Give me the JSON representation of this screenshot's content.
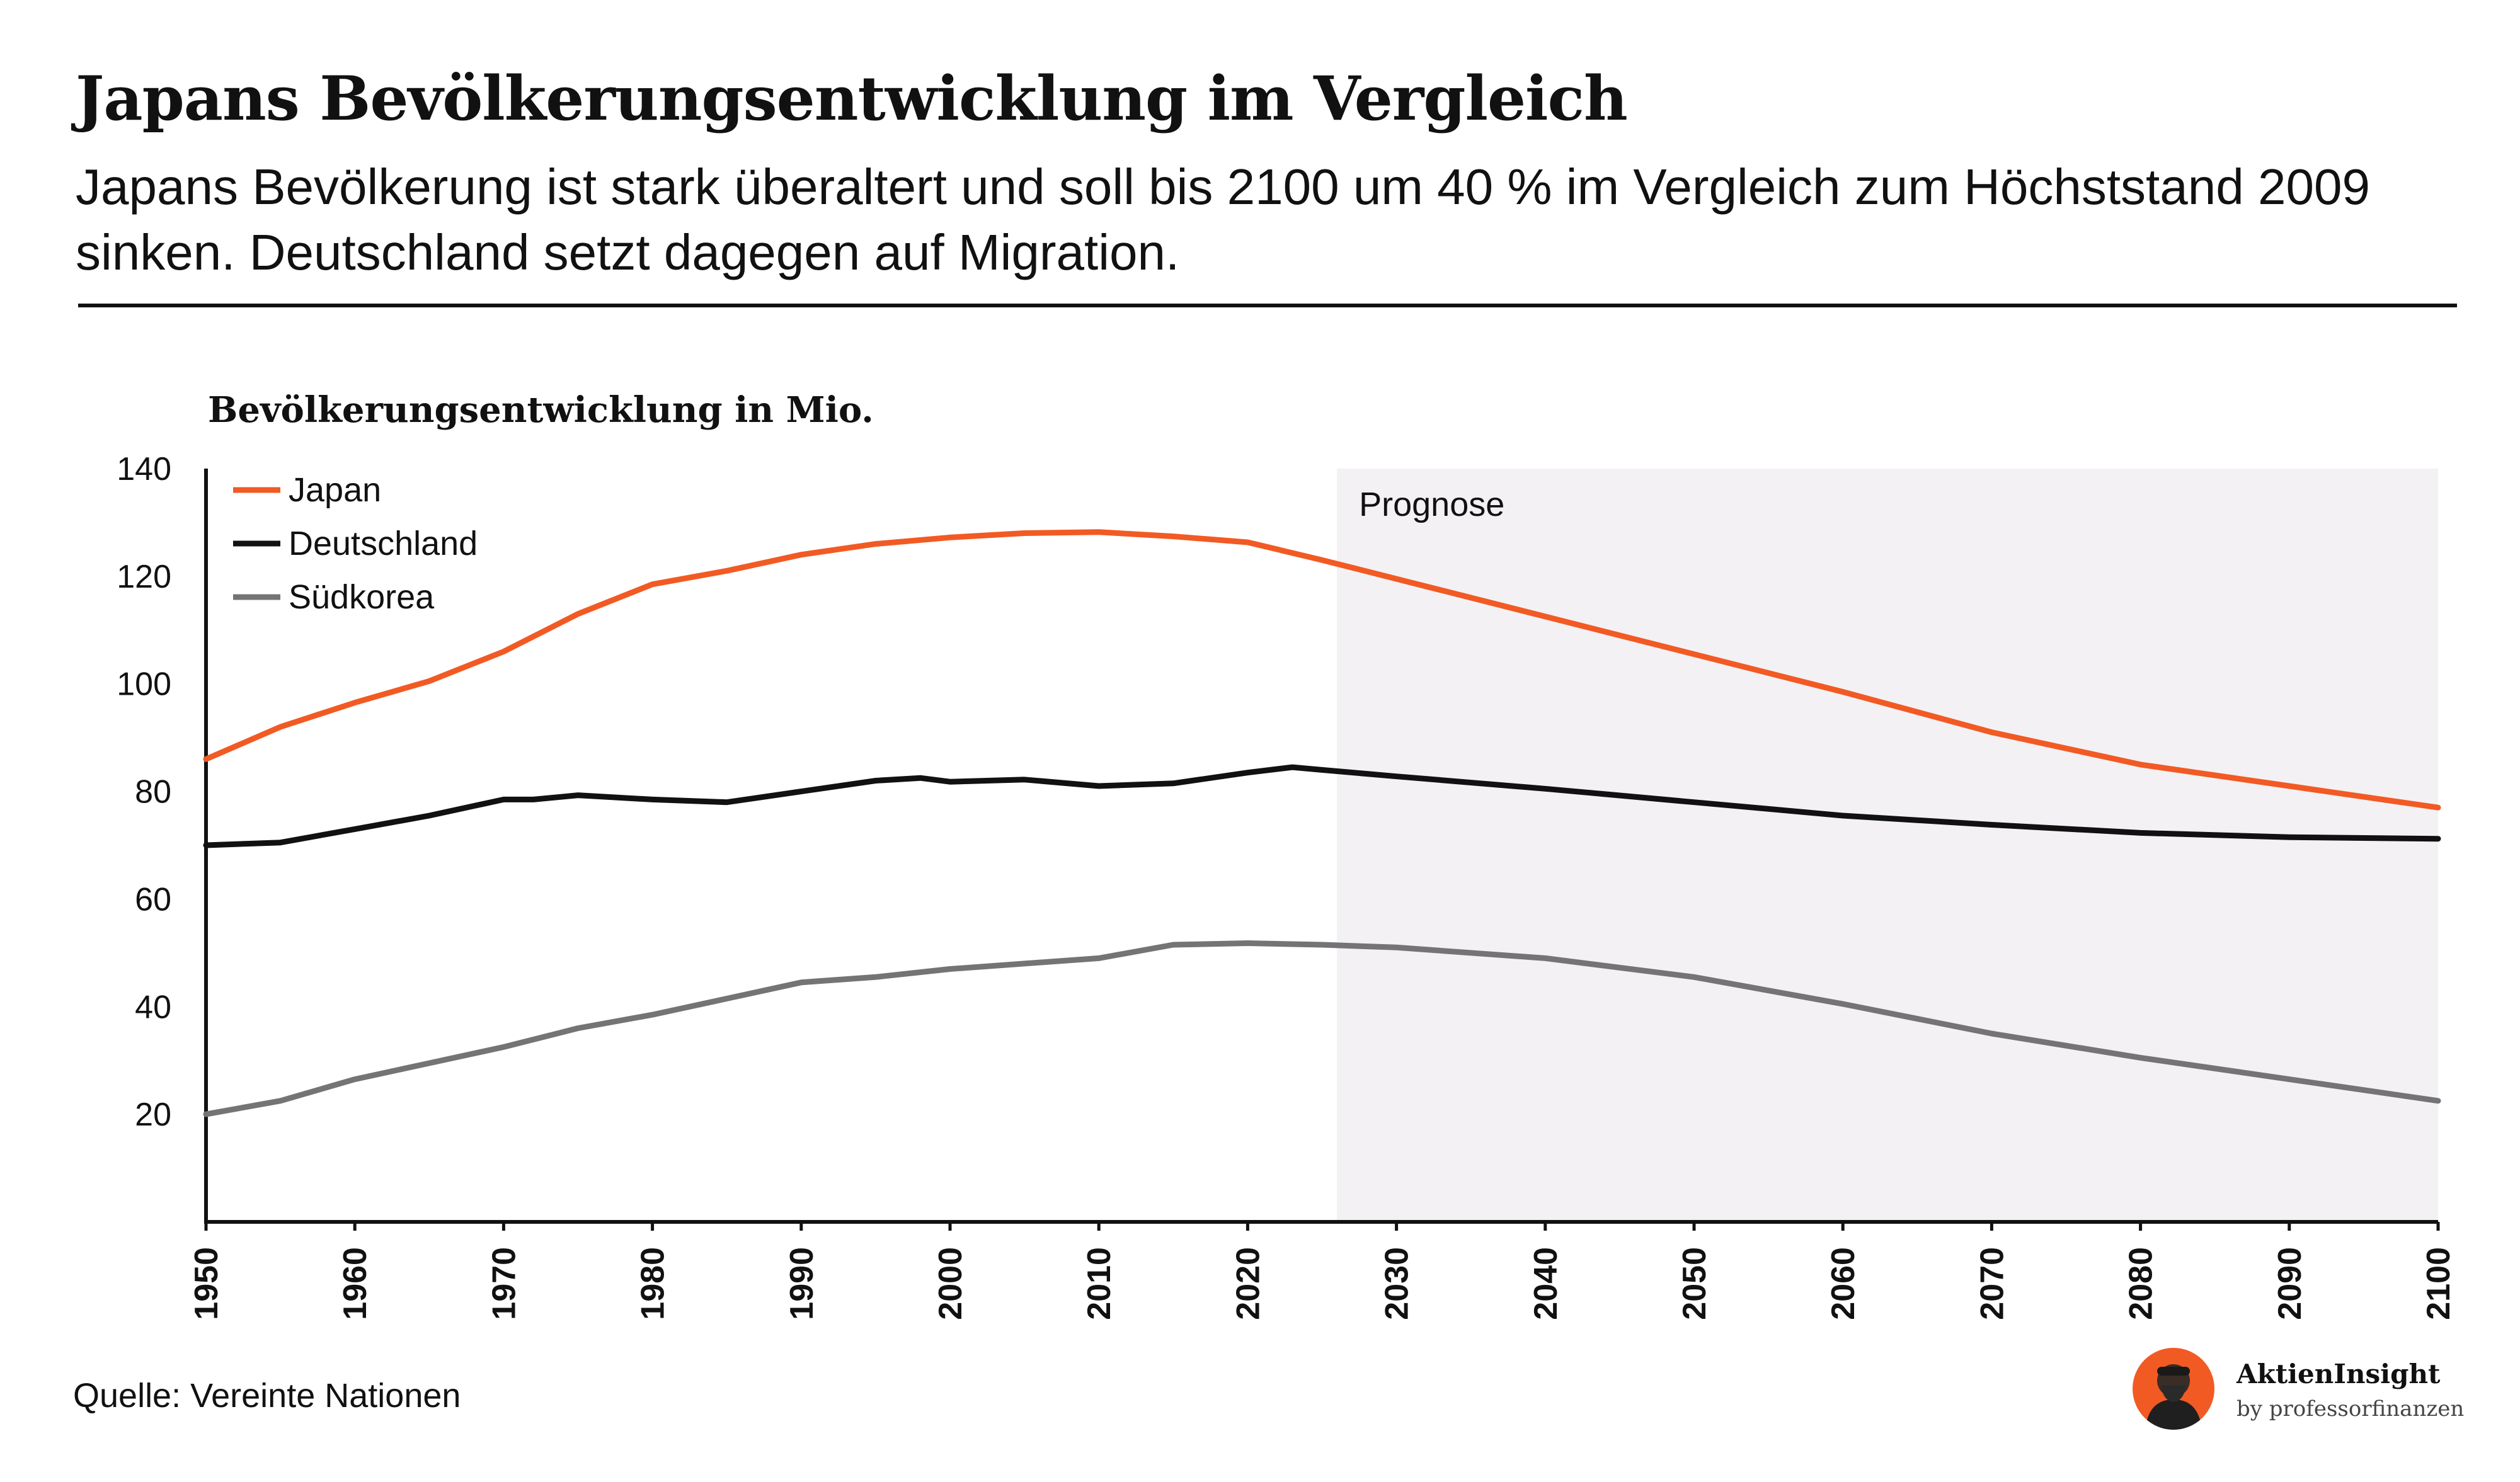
{
  "header": {
    "title": "Japans Bevölkerungsentwicklung im Vergleich",
    "subtitle": "Japans Bevölkerung ist stark überaltert und soll bis 2100 um 40 % im Vergleich zum Höchststand 2009 sinken. Deutschland setzt dagegen auf Migration."
  },
  "chart_data": {
    "type": "line",
    "title": "Bevölkerungsentwicklung in Mio.",
    "xlabel": "",
    "ylabel": "",
    "xlim": [
      1950,
      2100
    ],
    "ylim": [
      0,
      140
    ],
    "x_ticks": [
      "1950",
      "1960",
      "1970",
      "1980",
      "1990",
      "2000",
      "2010",
      "2020",
      "2030",
      "2040",
      "2050",
      "2060",
      "2070",
      "2080",
      "2090",
      "2100"
    ],
    "y_ticks": [
      "20",
      "40",
      "60",
      "80",
      "100",
      "120",
      "140"
    ],
    "grid": false,
    "legend_position": "top-left",
    "forecast": {
      "label": "Prognose",
      "from": 2026,
      "to": 2100,
      "color": "#f3f1f4"
    },
    "series": [
      {
        "name": "Japan",
        "color": "#f25a24",
        "x": [
          1950,
          1955,
          1960,
          1965,
          1970,
          1975,
          1980,
          1985,
          1990,
          1995,
          2000,
          2005,
          2010,
          2015,
          2020,
          2025,
          2030,
          2040,
          2050,
          2060,
          2070,
          2080,
          2090,
          2100
        ],
        "values": [
          86,
          92,
          96.5,
          100.5,
          106,
          113,
          118.5,
          121,
          124,
          126,
          127.2,
          128,
          128.2,
          127.4,
          126.3,
          123,
          119.5,
          112.5,
          105.5,
          98.5,
          91,
          85,
          81,
          77
        ]
      },
      {
        "name": "Deutschland",
        "color": "#111111",
        "x": [
          1950,
          1955,
          1960,
          1965,
          1970,
          1972,
          1975,
          1980,
          1985,
          1990,
          1995,
          1998,
          2000,
          2005,
          2010,
          2015,
          2020,
          2023,
          2025,
          2030,
          2040,
          2050,
          2060,
          2070,
          2080,
          2090,
          2100
        ],
        "values": [
          70,
          70.5,
          73,
          75.5,
          78.5,
          78.5,
          79.3,
          78.5,
          78,
          80,
          82,
          82.5,
          81.8,
          82.2,
          81,
          81.5,
          83.5,
          84.5,
          84,
          82.8,
          80.5,
          78,
          75.5,
          73.8,
          72.3,
          71.5,
          71.2
        ]
      },
      {
        "name": "Südkorea",
        "color": "#757376",
        "x": [
          1950,
          1955,
          1960,
          1965,
          1970,
          1975,
          1980,
          1985,
          1990,
          1995,
          2000,
          2005,
          2010,
          2015,
          2020,
          2025,
          2030,
          2040,
          2050,
          2060,
          2070,
          2080,
          2090,
          2100
        ],
        "values": [
          20,
          22.5,
          26.5,
          29.5,
          32.5,
          36,
          38.5,
          41.5,
          44.5,
          45.5,
          47,
          48,
          49,
          51.5,
          51.8,
          51.5,
          51,
          49,
          45.5,
          40.5,
          35,
          30.5,
          26.5,
          22.5
        ]
      }
    ]
  },
  "footer": {
    "source": "Quelle: Vereinte Nationen",
    "brand_name": "AktienInsight",
    "brand_sub": "by professorfinanzen",
    "brand_color": "#f25a24"
  }
}
